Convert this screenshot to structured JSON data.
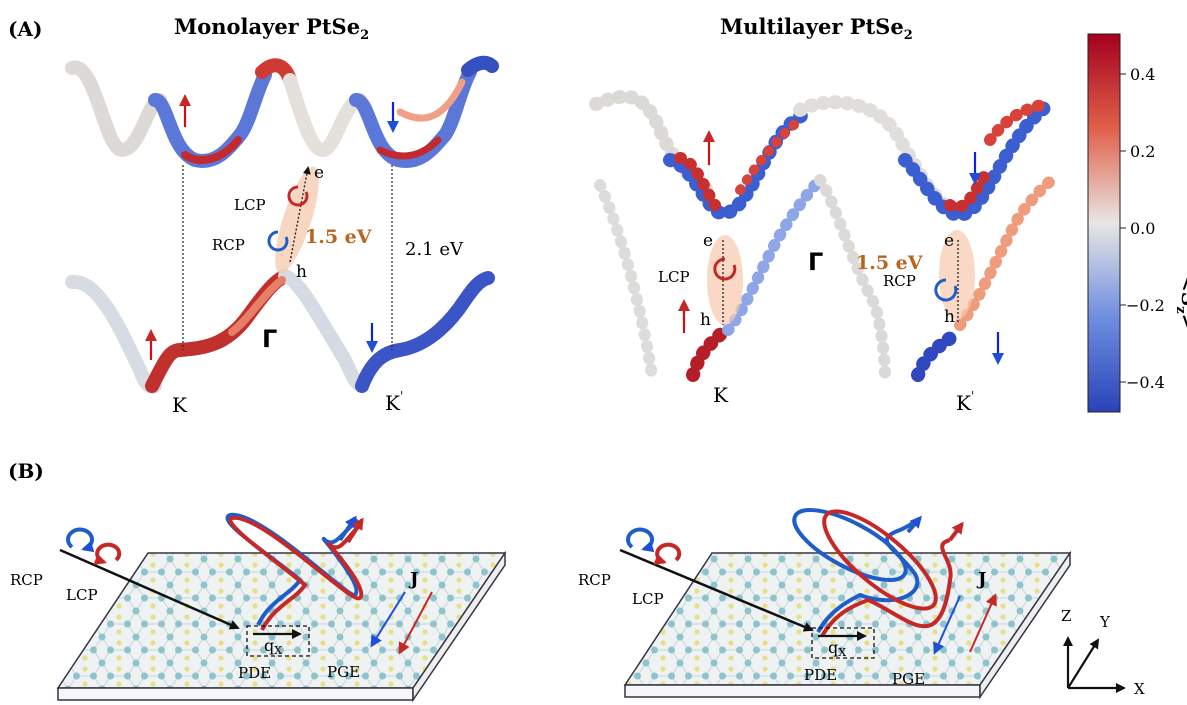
{
  "panel_a": {
    "label": "(A)",
    "mono": {
      "title_main": "Monolayer PtSe",
      "title_sub": "2",
      "k_label": "K",
      "kp_label": "K",
      "kp_prime": "'",
      "gamma_label": "Γ",
      "e_label": "e",
      "h_label": "h",
      "lcp_label": "LCP",
      "rcp_label": "RCP",
      "gap_label": "1.5 eV",
      "gap2_label": "2.1 eV"
    },
    "multi": {
      "title_main": "Multilayer PtSe",
      "title_sub": "2",
      "k_label": "K",
      "kp_label": "K",
      "kp_prime": "'",
      "gamma_label": "Γ",
      "e_label": "e",
      "h_label": "h",
      "lcp_label": "LCP",
      "rcp_label": "RCP",
      "gap_label": "1.5 eV"
    },
    "colorbar": {
      "title": "<S",
      "title_sub": "z",
      "title_end": ">",
      "ticks": [
        "0.4",
        "0.2",
        "0.0",
        "−0.2",
        "−0.4"
      ],
      "colors": {
        "high": "#b2182b",
        "mid": "#e8e8e8",
        "low": "#2b4fbf"
      }
    }
  },
  "panel_b": {
    "label": "(B)",
    "left": {
      "rcp_label": "RCP",
      "lcp_label": "LCP",
      "qx_label": "q",
      "qx_sub": "X",
      "pde_label": "PDE",
      "pge_label": "PGE",
      "j_label": "J"
    },
    "right": {
      "rcp_label": "RCP",
      "lcp_label": "LCP",
      "qx_label": "q",
      "qx_sub": "X",
      "pde_label": "PDE",
      "pge_label": "PGE",
      "j_label": "J"
    },
    "axes": {
      "z": "Z",
      "y": "Y",
      "x": "X"
    },
    "colors": {
      "rcp": "#1f5ec8",
      "lcp": "#c62828"
    }
  }
}
